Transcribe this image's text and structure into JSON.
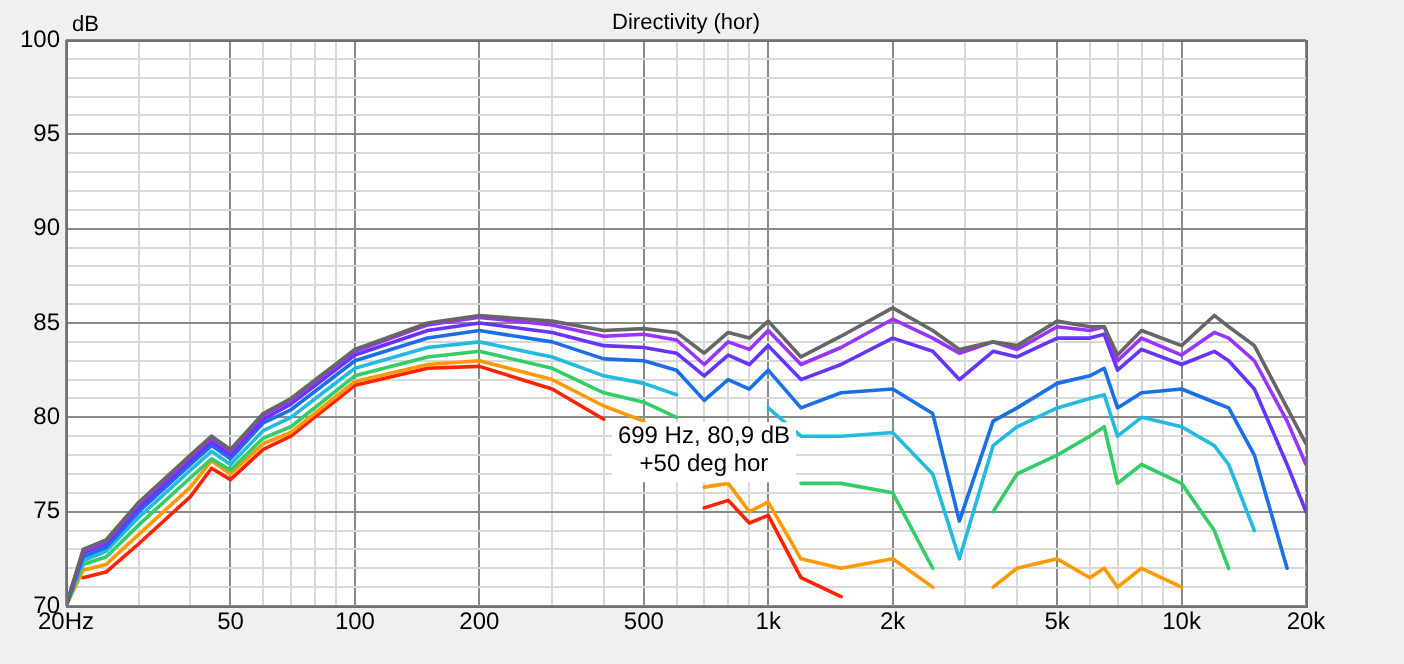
{
  "chart_data": {
    "type": "line",
    "title": "Directivity (hor)",
    "ylabel": "dB",
    "log": "x",
    "grid": true,
    "legend": false,
    "marker": "none",
    "line_style": "solid",
    "x": [
      20,
      22,
      25,
      30,
      40,
      45,
      50,
      60,
      70,
      100,
      150,
      200,
      300,
      400,
      500,
      600,
      700,
      800,
      900,
      1000,
      1200,
      1500,
      2000,
      2500,
      2900,
      3500,
      4000,
      5000,
      6000,
      6500,
      7000,
      8000,
      10000,
      12000,
      13000,
      15000,
      18000,
      20000
    ],
    "xlim": [
      20,
      20000
    ],
    "ylim": [
      70,
      100
    ],
    "xticks": [
      {
        "value": 20,
        "label": "20Hz"
      },
      {
        "value": 30,
        "label": null
      },
      {
        "value": 40,
        "label": null
      },
      50,
      {
        "value": 60,
        "label": null
      },
      {
        "value": 70,
        "label": null
      },
      {
        "value": 80,
        "label": null
      },
      {
        "value": 90,
        "label": null
      },
      100,
      200,
      {
        "value": 300,
        "label": null
      },
      {
        "value": 400,
        "label": null
      },
      500,
      {
        "value": 600,
        "label": null
      },
      {
        "value": 700,
        "label": null
      },
      {
        "value": 800,
        "label": null
      },
      {
        "value": 900,
        "label": null
      },
      {
        "value": 1000,
        "label": "1k"
      },
      {
        "value": 2000,
        "label": "2k"
      },
      {
        "value": 3000,
        "label": null
      },
      {
        "value": 4000,
        "label": null
      },
      {
        "value": 5000,
        "label": "5k"
      },
      {
        "value": 6000,
        "label": null
      },
      {
        "value": 7000,
        "label": null
      },
      {
        "value": 8000,
        "label": null
      },
      {
        "value": 9000,
        "label": null
      },
      {
        "value": 10000,
        "label": "10k"
      },
      {
        "value": 20000,
        "label": "20k"
      }
    ],
    "yticks": [
      70,
      {
        "value": 71,
        "label": null
      },
      {
        "value": 72,
        "label": null
      },
      {
        "value": 73,
        "label": null
      },
      {
        "value": 74,
        "label": null
      },
      75,
      {
        "value": 76,
        "label": null
      },
      {
        "value": 77,
        "label": null
      },
      {
        "value": 78,
        "label": null
      },
      {
        "value": 79,
        "label": null
      },
      80,
      {
        "value": 81,
        "label": null
      },
      {
        "value": 82,
        "label": null
      },
      {
        "value": 83,
        "label": null
      },
      {
        "value": 84,
        "label": null
      },
      85,
      {
        "value": 86,
        "label": null
      },
      {
        "value": 87,
        "label": null
      },
      {
        "value": 88,
        "label": null
      },
      {
        "value": 89,
        "label": null
      },
      90,
      {
        "value": 91,
        "label": null
      },
      {
        "value": 92,
        "label": null
      },
      {
        "value": 93,
        "label": null
      },
      {
        "value": 94,
        "label": null
      },
      95,
      {
        "value": 96,
        "label": null
      },
      {
        "value": 97,
        "label": null
      },
      {
        "value": 98,
        "label": null
      },
      {
        "value": 99,
        "label": null
      },
      100
    ],
    "annotations": [
      {
        "text": "699 Hz, 80,9 dB\n+50 deg hor",
        "x": 699,
        "y": 80.9
      }
    ],
    "series": [
      {
        "color": "#666666",
        "values": [
          70,
          73,
          73.5,
          75.5,
          78,
          79,
          78.3,
          80.2,
          81,
          83.6,
          85,
          85.4,
          85.1,
          84.6,
          84.7,
          84.5,
          83.4,
          84.5,
          84.2,
          85.1,
          83.2,
          84.3,
          85.8,
          84.6,
          83.6,
          84,
          83.8,
          85.1,
          84.8,
          84.8,
          83.3,
          84.6,
          83.8,
          85.4,
          84.8,
          83.8,
          80.5,
          78.6
        ]
      },
      {
        "color": "#9933ff",
        "values": [
          70,
          72.9,
          73.4,
          75.4,
          77.9,
          78.9,
          78.2,
          80.1,
          80.9,
          83.5,
          84.9,
          85.3,
          84.9,
          84.3,
          84.4,
          84.1,
          82.8,
          84,
          83.6,
          84.6,
          82.8,
          83.7,
          85.2,
          84.2,
          83.4,
          84,
          83.6,
          84.8,
          84.6,
          84.8,
          83,
          84.2,
          83.3,
          84.5,
          84.2,
          83,
          79.8,
          77.5
        ]
      },
      {
        "color": "#6633ff",
        "values": [
          70,
          72.8,
          73.3,
          75.2,
          77.7,
          78.7,
          78,
          79.9,
          80.7,
          83.3,
          84.6,
          85,
          84.5,
          83.8,
          83.7,
          83.4,
          82.2,
          83.3,
          82.8,
          83.8,
          82,
          82.8,
          84.2,
          83.5,
          82,
          83.5,
          83.2,
          84.2,
          84.2,
          84.4,
          82.5,
          83.6,
          82.8,
          83.5,
          83,
          81.5,
          77.5,
          75
        ]
      },
      {
        "color": "#1a6fe6",
        "values": [
          70,
          72.6,
          73.1,
          75,
          77.5,
          78.5,
          77.8,
          79.7,
          80.4,
          83,
          84.2,
          84.6,
          84,
          83.1,
          83,
          82.5,
          80.9,
          82,
          81.5,
          82.5,
          80.5,
          81.3,
          81.5,
          80.2,
          74.5,
          79.8,
          80.5,
          81.8,
          82.2,
          82.6,
          80.5,
          81.3,
          81.5,
          80.8,
          80.5,
          78,
          72,
          null
        ]
      },
      {
        "color": "#22bbdd",
        "values": [
          70,
          72.4,
          72.9,
          74.7,
          77.2,
          78.2,
          77.5,
          79.3,
          80,
          82.6,
          83.7,
          84,
          83.2,
          82.2,
          81.8,
          81.2,
          null,
          null,
          null,
          80.5,
          79,
          79,
          79.2,
          77,
          72.5,
          78.5,
          79.5,
          80.5,
          81,
          81.2,
          79,
          80,
          79.5,
          78.5,
          77.5,
          74,
          null,
          null
        ]
      },
      {
        "color": "#33cc66",
        "values": [
          70,
          72.2,
          72.6,
          74.3,
          76.8,
          77.8,
          77.2,
          78.9,
          79.5,
          82.2,
          83.2,
          83.5,
          82.6,
          81.3,
          80.8,
          80,
          null,
          null,
          null,
          null,
          76.5,
          76.5,
          76,
          72,
          null,
          75,
          77,
          78,
          79,
          79.5,
          76.5,
          77.5,
          76.5,
          74,
          72,
          null,
          null,
          null
        ]
      },
      {
        "color": "#ff9900",
        "values": [
          70,
          71.9,
          72.2,
          73.8,
          76.3,
          77.7,
          77,
          78.6,
          79.2,
          81.9,
          82.8,
          83,
          82,
          80.6,
          79.8,
          null,
          76.3,
          76.5,
          75,
          75.5,
          72.5,
          72,
          72.5,
          71,
          null,
          71,
          72,
          72.5,
          71.5,
          72,
          71,
          72,
          71,
          null,
          null,
          null,
          null,
          null
        ]
      },
      {
        "color": "#ff2200",
        "values": [
          null,
          71.5,
          71.8,
          73.3,
          75.8,
          77.3,
          76.7,
          78.3,
          79,
          81.7,
          82.6,
          82.7,
          81.5,
          79.9,
          null,
          null,
          75.2,
          75.6,
          74.4,
          74.8,
          71.5,
          70.5,
          null,
          null,
          null,
          null,
          null,
          null,
          null,
          null,
          null,
          null,
          null,
          null,
          null,
          null,
          null,
          null
        ]
      }
    ]
  }
}
